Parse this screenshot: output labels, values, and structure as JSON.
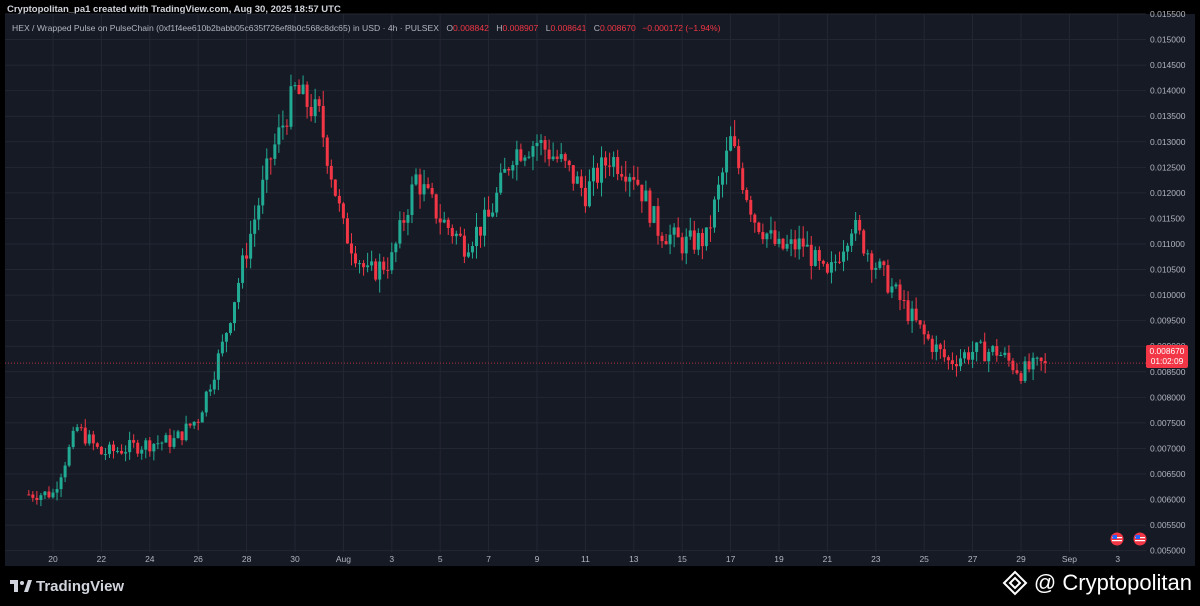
{
  "header": {
    "attribution": "Cryptopolitan_pa1 created with TradingView.com, Aug 30, 2025 18:57 UTC"
  },
  "legend": {
    "symbol": "HEX / Wrapped Pulse on PulseChain (0xf1f4ee610b2babb05c635f726ef8b0c568c8dc65) in USD · 4h · PULSEX",
    "open_label": "O",
    "open": "0.008842",
    "high_label": "H",
    "high": "0.008907",
    "low_label": "L",
    "low": "0.008641",
    "close_label": "C",
    "close": "0.008670",
    "change": "−0.000172 (−1.94%)"
  },
  "price_tag": {
    "price": "0.008670",
    "countdown": "01:02:09"
  },
  "footer": {
    "platform": "TradingView",
    "brand": "@ Cryptopolitan"
  },
  "colors": {
    "background": "#161a25",
    "up": "#22ab94",
    "down": "#f23645",
    "grid": "#232733",
    "text": "#b2b5be",
    "last_price_line": "#f23645"
  },
  "events": [
    "us-flag-icon",
    "us-flag-icon"
  ],
  "chart_data": {
    "type": "candlestick",
    "timeframe": "4h",
    "ylim": [
      0.0047,
      0.0155
    ],
    "y_ticks": [
      "0.015500",
      "0.015000",
      "0.014500",
      "0.014000",
      "0.013500",
      "0.013000",
      "0.012500",
      "0.012000",
      "0.011500",
      "0.011000",
      "0.010500",
      "0.010000",
      "0.009500",
      "0.009000",
      "0.008500",
      "0.008000",
      "0.007500",
      "0.007000",
      "0.006500",
      "0.006000",
      "0.005500",
      "0.005000"
    ],
    "x_ticks": [
      "20",
      "22",
      "24",
      "26",
      "28",
      "30",
      "Aug",
      "3",
      "5",
      "7",
      "9",
      "11",
      "13",
      "15",
      "17",
      "19",
      "21",
      "23",
      "25",
      "27",
      "29",
      "Sep",
      "3"
    ],
    "grid": true,
    "last_price": 0.00867,
    "daily_closes": [
      {
        "date": "Jul 19",
        "close": 0.0061
      },
      {
        "date": "Jul 20",
        "close": 0.00612
      },
      {
        "date": "Jul 21",
        "close": 0.0074
      },
      {
        "date": "Jul 22",
        "close": 0.0069
      },
      {
        "date": "Jul 23",
        "close": 0.007
      },
      {
        "date": "Jul 24",
        "close": 0.0071
      },
      {
        "date": "Jul 25",
        "close": 0.00715
      },
      {
        "date": "Jul 26",
        "close": 0.0076
      },
      {
        "date": "Jul 27",
        "close": 0.009
      },
      {
        "date": "Jul 28",
        "close": 0.0109
      },
      {
        "date": "Jul 29",
        "close": 0.0127
      },
      {
        "date": "Jul 30",
        "close": 0.014
      },
      {
        "date": "Jul 31",
        "close": 0.0135
      },
      {
        "date": "Aug 1",
        "close": 0.0113
      },
      {
        "date": "Aug 2",
        "close": 0.0104
      },
      {
        "date": "Aug 3",
        "close": 0.0107
      },
      {
        "date": "Aug 4",
        "close": 0.0123
      },
      {
        "date": "Aug 5",
        "close": 0.0115
      },
      {
        "date": "Aug 6",
        "close": 0.011
      },
      {
        "date": "Aug 7",
        "close": 0.0115
      },
      {
        "date": "Aug 8",
        "close": 0.0128
      },
      {
        "date": "Aug 9",
        "close": 0.013
      },
      {
        "date": "Aug 10",
        "close": 0.0126
      },
      {
        "date": "Aug 11",
        "close": 0.012
      },
      {
        "date": "Aug 12",
        "close": 0.0127
      },
      {
        "date": "Aug 13",
        "close": 0.0124
      },
      {
        "date": "Aug 14",
        "close": 0.0113
      },
      {
        "date": "Aug 15",
        "close": 0.011
      },
      {
        "date": "Aug 16",
        "close": 0.0111
      },
      {
        "date": "Aug 17",
        "close": 0.013
      },
      {
        "date": "Aug 18",
        "close": 0.0115
      },
      {
        "date": "Aug 19",
        "close": 0.0109
      },
      {
        "date": "Aug 20",
        "close": 0.011
      },
      {
        "date": "Aug 21",
        "close": 0.0103
      },
      {
        "date": "Aug 22",
        "close": 0.0114
      },
      {
        "date": "Aug 23",
        "close": 0.0106
      },
      {
        "date": "Aug 24",
        "close": 0.0099
      },
      {
        "date": "Aug 25",
        "close": 0.0092
      },
      {
        "date": "Aug 26",
        "close": 0.0087
      },
      {
        "date": "Aug 27",
        "close": 0.0089
      },
      {
        "date": "Aug 28",
        "close": 0.0089
      },
      {
        "date": "Aug 29",
        "close": 0.0085
      },
      {
        "date": "Aug 30",
        "close": 0.00867
      }
    ]
  }
}
